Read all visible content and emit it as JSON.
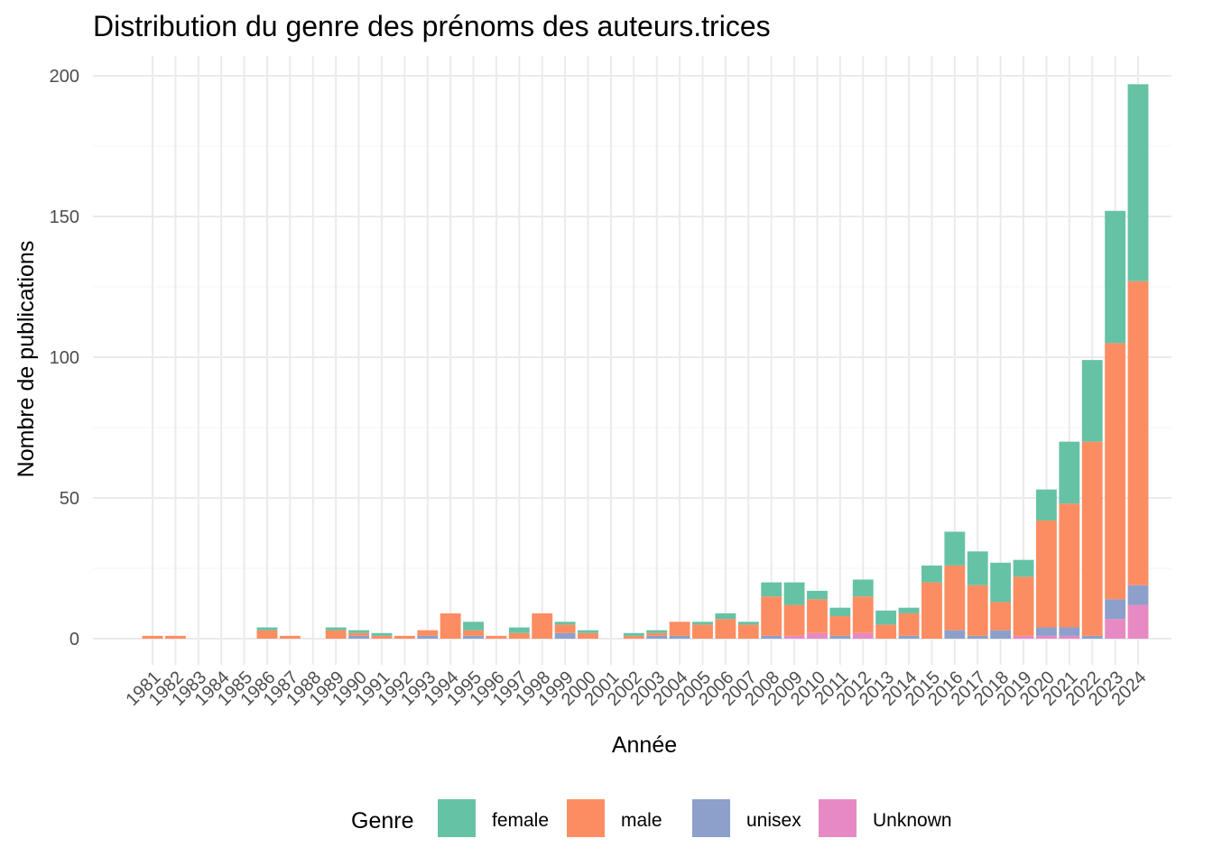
{
  "chart_data": {
    "type": "bar",
    "stacked": true,
    "title": "Distribution du genre des prénoms des auteurs.trices",
    "xlabel": "Année",
    "ylabel": "Nombre de publications",
    "ylim": [
      0,
      200
    ],
    "yticks": [
      0,
      50,
      100,
      150,
      200
    ],
    "grid": true,
    "legend": {
      "title": "Genre",
      "position": "bottom"
    },
    "categories": [
      "1981",
      "1982",
      "1983",
      "1984",
      "1985",
      "1986",
      "1987",
      "1988",
      "1989",
      "1990",
      "1991",
      "1992",
      "1993",
      "1994",
      "1995",
      "1996",
      "1997",
      "1998",
      "1999",
      "2000",
      "2001",
      "2002",
      "2003",
      "2004",
      "2005",
      "2006",
      "2007",
      "2008",
      "2009",
      "2010",
      "2011",
      "2012",
      "2013",
      "2014",
      "2015",
      "2016",
      "2017",
      "2018",
      "2019",
      "2020",
      "2021",
      "2022",
      "2023",
      "2024"
    ],
    "series": [
      {
        "name": "Unknown",
        "color": "#E78AC3",
        "values": [
          0,
          0,
          0,
          0,
          0,
          0,
          0,
          0,
          0,
          0,
          0,
          0,
          0,
          0,
          0,
          0,
          0,
          0,
          0,
          0,
          0,
          0,
          0,
          0,
          0,
          0,
          0,
          0,
          1,
          2,
          0,
          2,
          0,
          0,
          0,
          0,
          0,
          0,
          1,
          1,
          1,
          0,
          7,
          12
        ]
      },
      {
        "name": "unisex",
        "color": "#8DA0CB",
        "values": [
          0,
          0,
          0,
          0,
          0,
          0,
          0,
          0,
          0,
          1,
          0,
          0,
          1,
          0,
          1,
          0,
          0,
          0,
          2,
          0,
          0,
          0,
          1,
          1,
          0,
          0,
          0,
          1,
          0,
          0,
          1,
          0,
          0,
          1,
          0,
          3,
          1,
          3,
          0,
          3,
          3,
          1,
          7,
          7
        ]
      },
      {
        "name": "male",
        "color": "#FC8D62",
        "values": [
          1,
          1,
          0,
          0,
          0,
          3,
          1,
          0,
          3,
          1,
          1,
          1,
          2,
          9,
          2,
          1,
          2,
          9,
          3,
          2,
          0,
          1,
          1,
          5,
          5,
          7,
          5,
          14,
          11,
          12,
          7,
          13,
          5,
          8,
          20,
          23,
          18,
          10,
          21,
          38,
          44,
          69,
          91,
          108
        ]
      },
      {
        "name": "female",
        "color": "#66C2A5",
        "values": [
          0,
          0,
          0,
          0,
          0,
          1,
          0,
          0,
          1,
          1,
          1,
          0,
          0,
          0,
          3,
          0,
          2,
          0,
          1,
          1,
          0,
          1,
          1,
          0,
          1,
          2,
          1,
          5,
          8,
          3,
          3,
          6,
          5,
          2,
          6,
          12,
          12,
          14,
          6,
          11,
          22,
          29,
          47,
          70
        ]
      }
    ],
    "legend_order": [
      "female",
      "male",
      "unisex",
      "Unknown"
    ]
  }
}
